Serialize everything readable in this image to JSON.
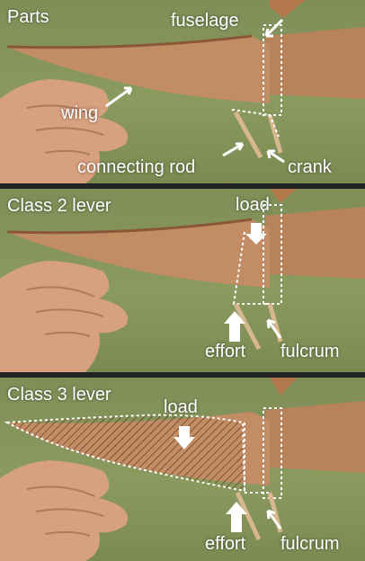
{
  "panels": [
    {
      "title": "Parts",
      "labels": {
        "fuselage": "fuselage",
        "wing": "wing",
        "rod": "connecting rod",
        "crank": "crank"
      }
    },
    {
      "title": "Class 2 lever",
      "labels": {
        "load": "load",
        "effort": "effort",
        "fulcrum": "fulcrum"
      }
    },
    {
      "title": "Class 3 lever",
      "labels": {
        "load": "load",
        "effort": "effort",
        "fulcrum": "fulcrum"
      }
    }
  ]
}
